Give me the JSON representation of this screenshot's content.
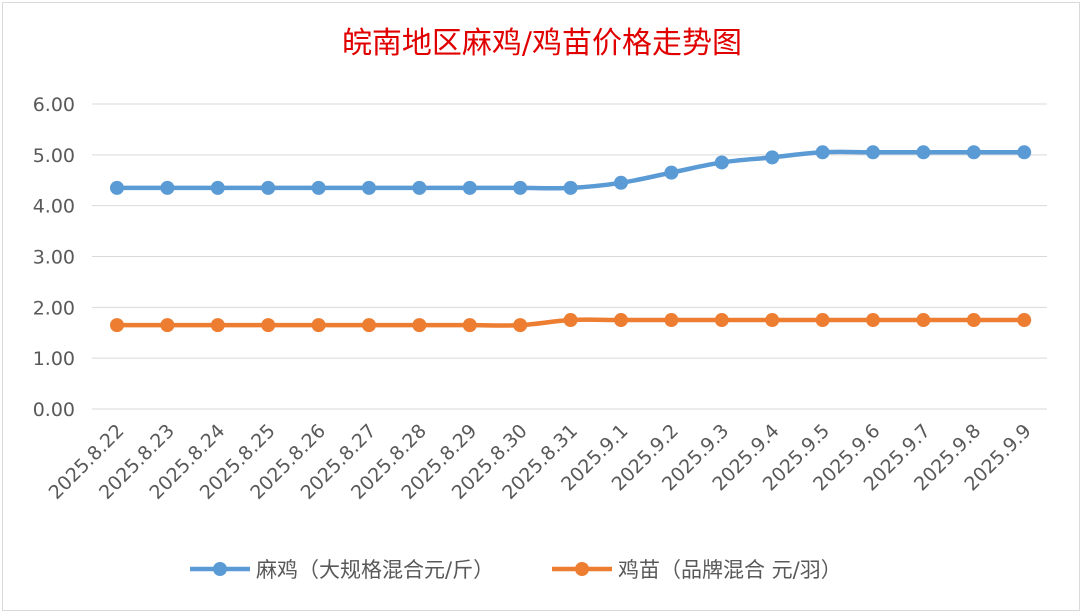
{
  "chart_data": {
    "type": "line",
    "title": "皖南地区麻鸡/鸡苗价格走势图",
    "categories": [
      "2025.8.22",
      "2025.8.23",
      "2025.8.24",
      "2025.8.25",
      "2025.8.26",
      "2025.8.27",
      "2025.8.28",
      "2025.8.29",
      "2025.8.30",
      "2025.8.31",
      "2025.9.1",
      "2025.9.2",
      "2025.9.3",
      "2025.9.4",
      "2025.9.5",
      "2025.9.6",
      "2025.9.7",
      "2025.9.8",
      "2025.9.9"
    ],
    "yticks": [
      "0.00",
      "1.00",
      "2.00",
      "3.00",
      "4.00",
      "5.00",
      "6.00"
    ],
    "ylim": [
      0,
      6
    ],
    "grid": true,
    "legend_position": "bottom",
    "series": [
      {
        "name": "麻鸡（大规格混合元/斤）",
        "color": "#5b9bd5",
        "values": [
          4.35,
          4.35,
          4.35,
          4.35,
          4.35,
          4.35,
          4.35,
          4.35,
          4.35,
          4.35,
          4.45,
          4.65,
          4.85,
          4.95,
          5.05,
          5.05,
          5.05,
          5.05,
          5.05
        ]
      },
      {
        "name": "鸡苗（品牌混合 元/羽）",
        "color": "#ed7d31",
        "values": [
          1.65,
          1.65,
          1.65,
          1.65,
          1.65,
          1.65,
          1.65,
          1.65,
          1.65,
          1.75,
          1.75,
          1.75,
          1.75,
          1.75,
          1.75,
          1.75,
          1.75,
          1.75,
          1.75
        ]
      }
    ]
  }
}
